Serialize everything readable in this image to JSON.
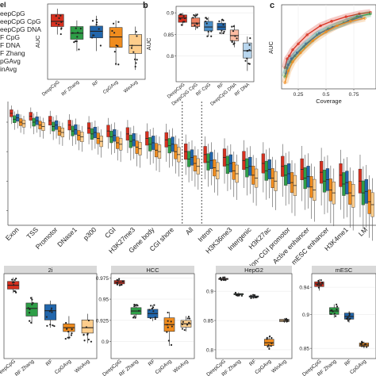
{
  "colors": {
    "DeepCpG": "#d7301f",
    "DeepCpG CpG": "#f08060",
    "DeepCpG DNA": "#fcbba1",
    "RF Zhang": "#2e9e47",
    "RF": "#2166ac",
    "CpGAvg": "#f08c1e",
    "WinAvg": "#fdcd8c",
    "strip": "#d9d9d9",
    "grid": "#ebebeb"
  },
  "panel_a": {
    "legend_title": "el",
    "legend_items": [
      "eepCpG",
      "eepCpG CpG",
      "eepCpG DNA",
      "F CpG",
      "F DNA",
      "F Zhang",
      "pGAvg",
      "inAvg"
    ],
    "legend_keys": [
      "DeepCpG",
      "DeepCpG CpG",
      "DeepCpG DNA",
      "RF",
      "RF",
      "RF Zhang",
      "CpGAvg",
      "WinAvg"
    ]
  },
  "panel_b": {
    "letter": "b"
  },
  "panel_c": {
    "letter": "c"
  },
  "chart_data": [
    {
      "id": "a",
      "type": "box",
      "ylabel": "AUC",
      "ylim": [
        0.76,
        0.92
      ],
      "categories": [
        "DeepCpG",
        "RF Zhang",
        "RF",
        "CpGAvg",
        "WinAvg"
      ],
      "boxes": [
        {
          "min": 0.855,
          "q1": 0.872,
          "median": 0.883,
          "q3": 0.898,
          "max": 0.91
        },
        {
          "min": 0.82,
          "q1": 0.845,
          "median": 0.858,
          "q3": 0.872,
          "max": 0.885
        },
        {
          "min": 0.82,
          "q1": 0.848,
          "median": 0.862,
          "q3": 0.873,
          "max": 0.895
        },
        {
          "min": 0.79,
          "q1": 0.828,
          "median": 0.85,
          "q3": 0.87,
          "max": 0.885
        },
        {
          "min": 0.78,
          "q1": 0.815,
          "median": 0.832,
          "q3": 0.855,
          "max": 0.872
        }
      ]
    },
    {
      "id": "b",
      "type": "box",
      "ylabel": "AUC",
      "ylim": [
        0.74,
        0.915
      ],
      "yticks": [
        0.8,
        0.85,
        0.9
      ],
      "categories": [
        "DeepCpG",
        "DeepCpG CpG",
        "RF CpG",
        "RF",
        "DeepCpG DNA",
        "RF DNA"
      ],
      "boxes": [
        {
          "min": 0.87,
          "q1": 0.878,
          "median": 0.888,
          "q3": 0.895,
          "max": 0.9
        },
        {
          "min": 0.86,
          "q1": 0.868,
          "median": 0.876,
          "q3": 0.888,
          "max": 0.898
        },
        {
          "min": 0.845,
          "q1": 0.858,
          "median": 0.867,
          "q3": 0.88,
          "max": 0.89
        },
        {
          "min": 0.85,
          "q1": 0.86,
          "median": 0.867,
          "q3": 0.876,
          "max": 0.885
        },
        {
          "min": 0.82,
          "q1": 0.835,
          "median": 0.847,
          "q3": 0.86,
          "max": 0.872
        },
        {
          "min": 0.765,
          "q1": 0.795,
          "median": 0.812,
          "q3": 0.83,
          "max": 0.845
        }
      ]
    },
    {
      "id": "c",
      "type": "scatter",
      "xlabel": "Coverage",
      "ylabel": "AUC",
      "xticks": [
        0.25,
        0.5,
        0.75
      ],
      "xlim": [
        0.1,
        0.95
      ],
      "ylim": [
        0.68,
        0.96
      ],
      "series": [
        {
          "key": "DeepCpG",
          "x": [
            0.13,
            0.15,
            0.17,
            0.2,
            0.25,
            0.33,
            0.45,
            0.55,
            0.68,
            0.8,
            0.9
          ],
          "y": [
            0.75,
            0.78,
            0.79,
            0.81,
            0.83,
            0.86,
            0.89,
            0.905,
            0.92,
            0.93,
            0.935
          ]
        },
        {
          "key": "RF Zhang",
          "x": [
            0.13,
            0.15,
            0.18,
            0.22,
            0.3,
            0.42,
            0.52,
            0.66,
            0.78,
            0.9
          ],
          "y": [
            0.72,
            0.75,
            0.77,
            0.79,
            0.82,
            0.86,
            0.88,
            0.9,
            0.92,
            0.93
          ]
        },
        {
          "key": "RF",
          "x": [
            0.14,
            0.16,
            0.19,
            0.24,
            0.32,
            0.44,
            0.56,
            0.7,
            0.82
          ],
          "y": [
            0.73,
            0.76,
            0.78,
            0.8,
            0.83,
            0.865,
            0.885,
            0.905,
            0.92
          ]
        },
        {
          "key": "CpGAvg",
          "x": [
            0.13,
            0.16,
            0.2,
            0.27,
            0.38,
            0.5,
            0.6,
            0.72,
            0.85
          ],
          "y": [
            0.7,
            0.74,
            0.77,
            0.8,
            0.84,
            0.87,
            0.89,
            0.905,
            0.915
          ]
        }
      ]
    },
    {
      "id": "d",
      "type": "box",
      "categories": [
        "Exon",
        "TSS",
        "Promotor",
        "DNase1",
        "p300",
        "CGI",
        "H3K27me3",
        "Gene body",
        "CGI shore",
        "All",
        "Intron",
        "H3K36me3",
        "Intergenic",
        "H3K27ac",
        "Non−CGI promotor",
        "Active enhancer",
        "mESC enhancer",
        "H3K4me1",
        "LM"
      ],
      "dividers_after": [
        8,
        9
      ],
      "series": [
        {
          "key": "DeepCpG",
          "values": [
            0.93,
            0.92,
            0.905,
            0.89,
            0.88,
            0.87,
            0.86,
            0.845,
            0.84,
            0.8,
            0.79,
            0.78,
            0.77,
            0.76,
            0.75,
            0.74,
            0.73,
            0.72,
            0.7
          ]
        },
        {
          "key": "RF Zhang",
          "values": [
            0.91,
            0.9,
            0.885,
            0.87,
            0.86,
            0.85,
            0.835,
            0.825,
            0.82,
            0.775,
            0.765,
            0.755,
            0.745,
            0.735,
            0.72,
            0.71,
            0.7,
            0.69,
            0.66
          ]
        },
        {
          "key": "RF",
          "values": [
            0.915,
            0.905,
            0.89,
            0.875,
            0.865,
            0.855,
            0.84,
            0.83,
            0.825,
            0.78,
            0.77,
            0.76,
            0.75,
            0.74,
            0.725,
            0.715,
            0.705,
            0.695,
            0.665
          ]
        },
        {
          "key": "CpGAvg",
          "values": [
            0.9,
            0.89,
            0.87,
            0.855,
            0.845,
            0.83,
            0.815,
            0.805,
            0.8,
            0.76,
            0.745,
            0.735,
            0.72,
            0.71,
            0.695,
            0.68,
            0.67,
            0.66,
            0.63
          ]
        },
        {
          "key": "WinAvg",
          "values": [
            0.895,
            0.885,
            0.865,
            0.85,
            0.835,
            0.825,
            0.81,
            0.8,
            0.79,
            0.75,
            0.735,
            0.725,
            0.71,
            0.7,
            0.685,
            0.67,
            0.66,
            0.65,
            0.62
          ]
        }
      ]
    },
    {
      "id": "e1",
      "type": "box",
      "strip_title": "2i",
      "ylim": [
        0.86,
        0.97
      ],
      "categories": [
        "DeepCpG",
        "RF Zhang",
        "RF",
        "CpGAvg",
        "WinAvg"
      ],
      "boxes": [
        {
          "min": 0.945,
          "q1": 0.95,
          "median": 0.955,
          "q3": 0.96,
          "max": 0.965
        },
        {
          "min": 0.905,
          "q1": 0.915,
          "median": 0.925,
          "q3": 0.932,
          "max": 0.94
        },
        {
          "min": 0.9,
          "q1": 0.91,
          "median": 0.922,
          "q3": 0.93,
          "max": 0.935
        },
        {
          "min": 0.885,
          "q1": 0.895,
          "median": 0.9,
          "q3": 0.905,
          "max": 0.915
        },
        {
          "min": 0.88,
          "q1": 0.893,
          "median": 0.9,
          "q3": 0.91,
          "max": 0.918
        }
      ]
    },
    {
      "id": "e2",
      "type": "box",
      "strip_title": "HCC",
      "ylim": [
        0.88,
        0.98
      ],
      "yticks": [
        0.9,
        0.925,
        0.95,
        0.975
      ],
      "categories": [
        "DeepCpG",
        "RF Zhang",
        "RF",
        "CpGAvg",
        "WinAvg"
      ],
      "boxes": [
        {
          "min": 0.966,
          "q1": 0.968,
          "median": 0.97,
          "q3": 0.972,
          "max": 0.974
        },
        {
          "min": 0.928,
          "q1": 0.932,
          "median": 0.936,
          "q3": 0.94,
          "max": 0.944
        },
        {
          "min": 0.924,
          "q1": 0.928,
          "median": 0.933,
          "q3": 0.938,
          "max": 0.943
        },
        {
          "min": 0.895,
          "q1": 0.912,
          "median": 0.92,
          "q3": 0.928,
          "max": 0.935
        },
        {
          "min": 0.912,
          "q1": 0.917,
          "median": 0.921,
          "q3": 0.925,
          "max": 0.93
        }
      ]
    },
    {
      "id": "e3",
      "type": "box",
      "strip_title": "HepG2",
      "ylim": [
        0.785,
        0.93
      ],
      "yticks": [
        0.8,
        0.85,
        0.9
      ],
      "categories": [
        "DeepCpG",
        "RF Zhang",
        "RF",
        "CpGAvg",
        "WinAvg"
      ],
      "boxes": [
        {
          "min": 0.918,
          "q1": 0.92,
          "median": 0.921,
          "q3": 0.922,
          "max": 0.924
        },
        {
          "min": 0.892,
          "q1": 0.894,
          "median": 0.895,
          "q3": 0.896,
          "max": 0.898
        },
        {
          "min": 0.888,
          "q1": 0.89,
          "median": 0.891,
          "q3": 0.892,
          "max": 0.894
        },
        {
          "min": 0.8,
          "q1": 0.807,
          "median": 0.812,
          "q3": 0.818,
          "max": 0.823
        },
        {
          "min": 0.846,
          "q1": 0.848,
          "median": 0.85,
          "q3": 0.852,
          "max": 0.854
        }
      ]
    },
    {
      "id": "e4",
      "type": "box",
      "strip_title": "mESC",
      "ylim": [
        0.835,
        0.96
      ],
      "yticks": [
        0.85,
        0.9,
        0.94
      ],
      "categories": [
        "DeepCpG",
        "RF Zhang",
        "RF",
        "CpGAvg"
      ],
      "boxes": [
        {
          "min": 0.935,
          "q1": 0.941,
          "median": 0.945,
          "q3": 0.948,
          "max": 0.952
        },
        {
          "min": 0.895,
          "q1": 0.9,
          "median": 0.905,
          "q3": 0.91,
          "max": 0.915
        },
        {
          "min": 0.888,
          "q1": 0.893,
          "median": 0.897,
          "q3": 0.902,
          "max": 0.905
        },
        {
          "min": 0.85,
          "q1": 0.853,
          "median": 0.855,
          "q3": 0.858,
          "max": 0.86
        }
      ]
    }
  ]
}
